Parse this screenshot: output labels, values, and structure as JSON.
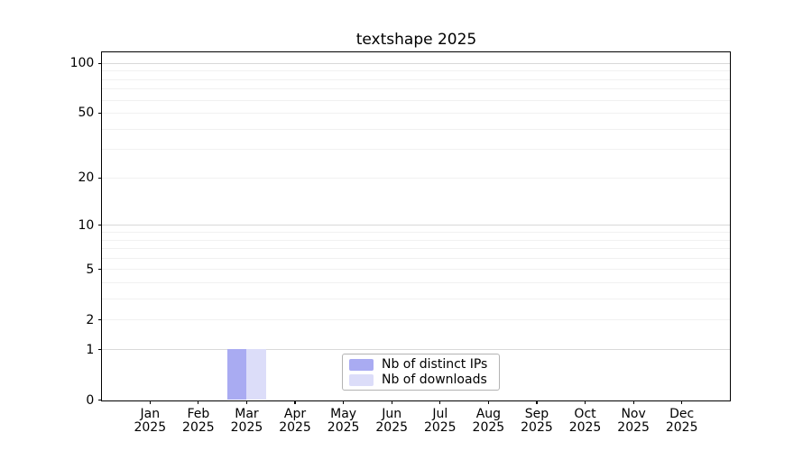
{
  "chart_data": {
    "type": "bar",
    "title": "textshape 2025",
    "categories": [
      "Jan 2025",
      "Feb 2025",
      "Mar 2025",
      "Apr 2025",
      "May 2025",
      "Jun 2025",
      "Jul 2025",
      "Aug 2025",
      "Sep 2025",
      "Oct 2025",
      "Nov 2025",
      "Dec 2025"
    ],
    "series": [
      {
        "name": "Nb of distinct IPs",
        "color": "#a9abf2",
        "values": [
          0,
          0,
          1,
          0,
          0,
          0,
          0,
          0,
          0,
          0,
          0,
          0
        ]
      },
      {
        "name": "Nb of downloads",
        "color": "#dcddf9",
        "values": [
          0,
          0,
          1,
          0,
          0,
          0,
          0,
          0,
          0,
          0,
          0,
          0
        ]
      }
    ],
    "xlabel": "",
    "ylabel": "",
    "y_scale": "log1p",
    "y_ticks": [
      0,
      1,
      2,
      5,
      10,
      20,
      50,
      100
    ],
    "y_minor_gridlines": [
      2,
      3,
      4,
      5,
      6,
      7,
      8,
      9,
      20,
      30,
      40,
      50,
      60,
      70,
      80,
      90
    ],
    "y_major_gridlines": [
      1,
      10,
      100
    ],
    "ylim": [
      0,
      116
    ],
    "grid": true,
    "legend_position": "lower center"
  },
  "colors": {
    "grid_major": "#d9d9d9",
    "grid_minor": "#f1f1f1",
    "axis_frame": "#000000",
    "legend_border": "#b3b3b3",
    "background": "#ffffff"
  }
}
